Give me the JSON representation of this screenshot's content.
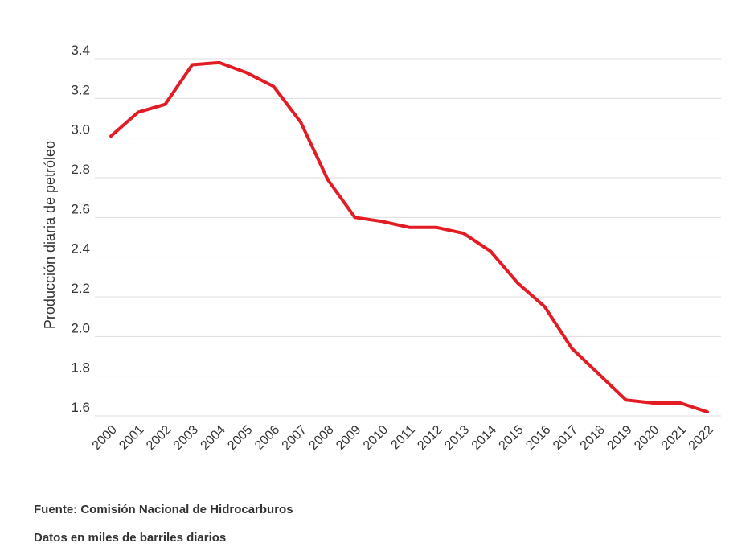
{
  "chart_data": {
    "type": "line",
    "title": "",
    "xlabel": "",
    "ylabel": "Producción diaria de petróleo",
    "ylim": [
      1.6,
      3.4
    ],
    "yticks": [
      "1.6",
      "1.8",
      "2.0",
      "2.2",
      "2.4",
      "2.6",
      "2.8",
      "3.0",
      "3.2",
      "3.4"
    ],
    "grid": true,
    "x": [
      "2000",
      "2001",
      "2002",
      "2003",
      "2004",
      "2005",
      "2006",
      "2007",
      "2008",
      "2009",
      "2010",
      "2011",
      "2012",
      "2013",
      "2014",
      "2015",
      "2016",
      "2017",
      "2018",
      "2019",
      "2020",
      "2021",
      "2022"
    ],
    "series": [
      {
        "values": [
          3.01,
          3.13,
          3.17,
          3.37,
          3.38,
          3.33,
          3.26,
          3.08,
          2.79,
          2.6,
          2.58,
          2.55,
          2.55,
          2.52,
          2.43,
          2.27,
          2.15,
          1.94,
          1.81,
          1.68,
          1.665,
          1.665,
          1.62
        ],
        "color": "#e31b23"
      }
    ]
  },
  "footer": {
    "source": "Fuente: Comisión Nacional de Hidrocarburos",
    "note": "Datos en miles de barriles diarios"
  }
}
